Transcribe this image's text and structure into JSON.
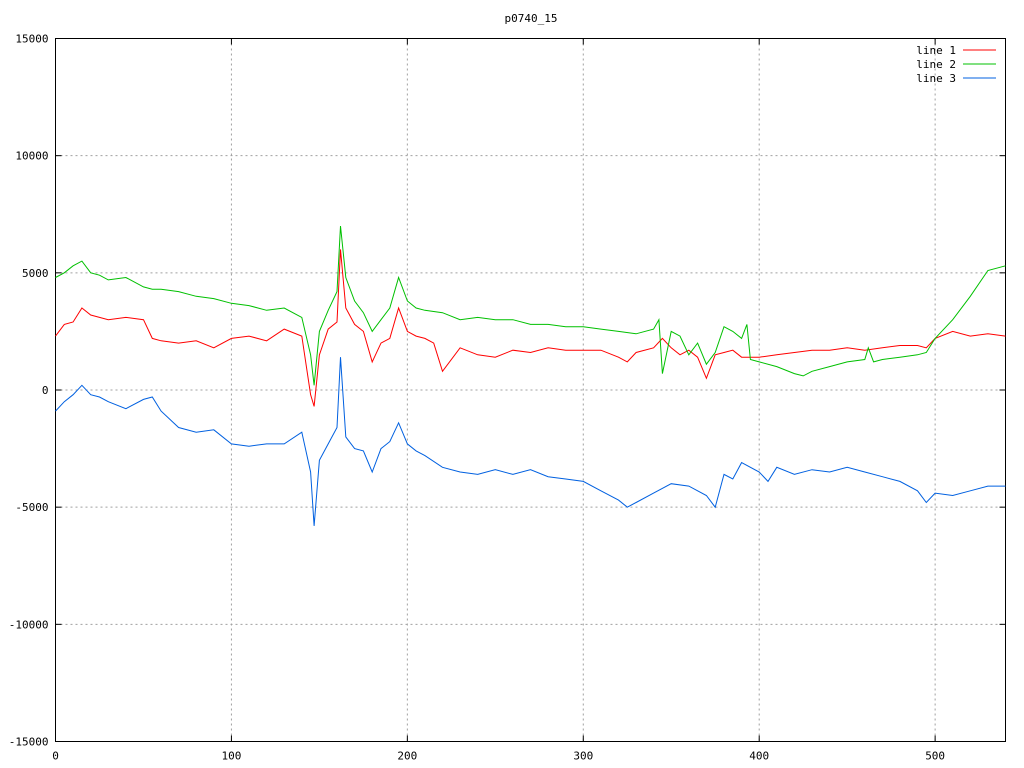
{
  "chart_data": {
    "type": "line",
    "title": "p0740_15",
    "xlabel": "",
    "ylabel": "",
    "xlim": [
      0,
      540
    ],
    "ylim": [
      -15000,
      15000
    ],
    "x_ticks": [
      0,
      100,
      200,
      300,
      400,
      500
    ],
    "y_ticks": [
      -15000,
      -10000,
      -5000,
      0,
      5000,
      10000,
      15000
    ],
    "grid": true,
    "legend_position": "top-right",
    "series": [
      {
        "name": "line 1",
        "color": "#ff0000",
        "x": [
          0,
          5,
          10,
          15,
          20,
          25,
          30,
          40,
          50,
          55,
          60,
          70,
          80,
          90,
          100,
          110,
          120,
          130,
          140,
          145,
          147,
          150,
          155,
          160,
          162,
          165,
          170,
          175,
          180,
          185,
          190,
          195,
          200,
          205,
          210,
          215,
          220,
          230,
          240,
          250,
          260,
          270,
          280,
          290,
          300,
          310,
          320,
          325,
          330,
          340,
          345,
          350,
          355,
          360,
          365,
          370,
          375,
          380,
          385,
          390,
          395,
          400,
          410,
          420,
          430,
          440,
          450,
          460,
          470,
          480,
          490,
          495,
          500,
          510,
          520,
          530,
          540
        ],
        "y": [
          2300,
          2800,
          2900,
          3500,
          3200,
          3100,
          3000,
          3100,
          3000,
          2200,
          2100,
          2000,
          2100,
          1800,
          2200,
          2300,
          2100,
          2600,
          2300,
          -200,
          -700,
          1500,
          2600,
          2900,
          6000,
          3500,
          2800,
          2500,
          1200,
          2000,
          2200,
          3500,
          2500,
          2300,
          2200,
          2000,
          800,
          1800,
          1500,
          1400,
          1700,
          1600,
          1800,
          1700,
          1700,
          1700,
          1400,
          1200,
          1600,
          1800,
          2200,
          1800,
          1500,
          1700,
          1400,
          500,
          1500,
          1600,
          1700,
          1400,
          1400,
          1400,
          1500,
          1600,
          1700,
          1700,
          1800,
          1700,
          1800,
          1900,
          1900,
          1800,
          2200,
          2500,
          2300,
          2400,
          2300
        ]
      },
      {
        "name": "line 2",
        "color": "#00c000",
        "x": [
          0,
          5,
          10,
          15,
          20,
          25,
          30,
          40,
          50,
          55,
          60,
          70,
          80,
          90,
          100,
          110,
          120,
          130,
          140,
          145,
          147,
          150,
          155,
          160,
          162,
          165,
          170,
          175,
          180,
          185,
          190,
          195,
          200,
          205,
          210,
          220,
          230,
          240,
          250,
          260,
          270,
          280,
          290,
          300,
          310,
          320,
          330,
          340,
          343,
          345,
          350,
          355,
          360,
          365,
          370,
          375,
          380,
          385,
          390,
          393,
          395,
          400,
          410,
          420,
          425,
          430,
          440,
          450,
          460,
          462,
          465,
          470,
          480,
          490,
          495,
          500,
          510,
          520,
          530,
          540
        ],
        "y": [
          4800,
          5000,
          5300,
          5500,
          5000,
          4900,
          4700,
          4800,
          4400,
          4300,
          4300,
          4200,
          4000,
          3900,
          3700,
          3600,
          3400,
          3500,
          3100,
          1500,
          200,
          2500,
          3400,
          4200,
          7000,
          4800,
          3800,
          3300,
          2500,
          3000,
          3500,
          4800,
          3800,
          3500,
          3400,
          3300,
          3000,
          3100,
          3000,
          3000,
          2800,
          2800,
          2700,
          2700,
          2600,
          2500,
          2400,
          2600,
          3000,
          700,
          2500,
          2300,
          1500,
          2000,
          1100,
          1600,
          2700,
          2500,
          2200,
          2800,
          1300,
          1200,
          1000,
          700,
          600,
          800,
          1000,
          1200,
          1300,
          1800,
          1200,
          1300,
          1400,
          1500,
          1600,
          2200,
          3000,
          4000,
          5100,
          5300
        ]
      },
      {
        "name": "line 3",
        "color": "#0060e0",
        "x": [
          0,
          5,
          10,
          15,
          20,
          25,
          30,
          40,
          50,
          55,
          60,
          70,
          80,
          90,
          100,
          110,
          120,
          130,
          140,
          145,
          147,
          150,
          155,
          160,
          162,
          165,
          170,
          175,
          180,
          185,
          190,
          195,
          200,
          205,
          210,
          220,
          230,
          240,
          250,
          260,
          270,
          280,
          290,
          300,
          310,
          320,
          325,
          330,
          340,
          350,
          360,
          370,
          375,
          380,
          385,
          390,
          400,
          405,
          410,
          420,
          430,
          440,
          450,
          460,
          470,
          480,
          490,
          495,
          500,
          510,
          520,
          530,
          540
        ],
        "y": [
          -900,
          -500,
          -200,
          200,
          -200,
          -300,
          -500,
          -800,
          -400,
          -300,
          -900,
          -1600,
          -1800,
          -1700,
          -2300,
          -2400,
          -2300,
          -2300,
          -1800,
          -3500,
          -5800,
          -3000,
          -2300,
          -1600,
          1400,
          -2000,
          -2500,
          -2600,
          -3500,
          -2500,
          -2200,
          -1400,
          -2300,
          -2600,
          -2800,
          -3300,
          -3500,
          -3600,
          -3400,
          -3600,
          -3400,
          -3700,
          -3800,
          -3900,
          -4300,
          -4700,
          -5000,
          -4800,
          -4400,
          -4000,
          -4100,
          -4500,
          -5000,
          -3600,
          -3800,
          -3100,
          -3500,
          -3900,
          -3300,
          -3600,
          -3400,
          -3500,
          -3300,
          -3500,
          -3700,
          -3900,
          -4300,
          -4800,
          -4400,
          -4500,
          -4300,
          -4100,
          -4100
        ]
      }
    ]
  }
}
